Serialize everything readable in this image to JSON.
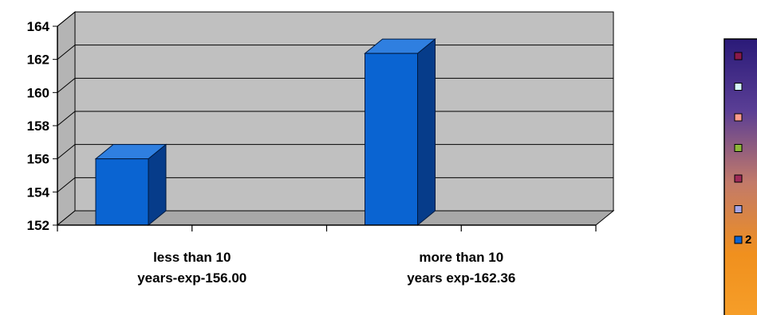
{
  "chart_data": {
    "type": "bar",
    "style": "3d-column",
    "categories": [
      [
        "less than 10",
        "years-exp-156.00"
      ],
      [
        "more than 10",
        "years exp-162.36"
      ]
    ],
    "series": [
      {
        "values": [
          156.0,
          162.36
        ],
        "color": "#0a64d2"
      }
    ],
    "ylim": [
      152,
      164
    ],
    "yticks": [
      152,
      154,
      156,
      158,
      160,
      162,
      164
    ],
    "grid": true,
    "legend": {
      "position": "right",
      "gradient": [
        "#2a1a78",
        "#5a3e95",
        "#c27a6a",
        "#f0901e",
        "#f7a02a"
      ],
      "markers": [
        "#8a1a4a",
        "#d6f6fb",
        "#ff9d8c",
        "#8fb83a",
        "#a02a5a",
        "#a6a6e6",
        "#0a64d2"
      ],
      "visible_text": "2"
    },
    "colors": {
      "plot_wall": "#c0c0c0",
      "floor": "#a8a8a8",
      "bar_front": "#0a64d2",
      "bar_top": "#2f7fe0",
      "bar_side": "#063c8a"
    }
  }
}
